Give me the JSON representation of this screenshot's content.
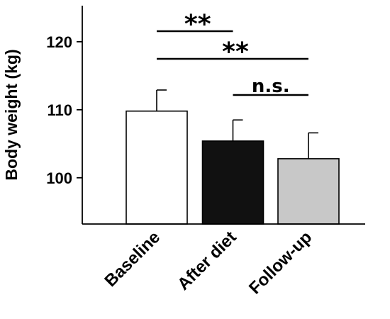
{
  "chart_data": {
    "type": "bar",
    "title": "",
    "xlabel": "",
    "ylabel": "Body weight (kg)",
    "categories": [
      "Baseline",
      "After diet",
      "Follow-up"
    ],
    "values": [
      109.8,
      105.4,
      102.8
    ],
    "errors": [
      3.1,
      3.1,
      3.8
    ],
    "bar_colors": [
      "#ffffff",
      "#111111",
      "#c8c8c8"
    ],
    "ylim": [
      93.2,
      125.3
    ],
    "yticks": [
      100,
      110,
      120
    ],
    "grid": false,
    "legend": "none",
    "significance": [
      {
        "from": "Baseline",
        "to": "After diet",
        "label": "**"
      },
      {
        "from": "Baseline",
        "to": "Follow-up",
        "label": "**"
      },
      {
        "from": "After diet",
        "to": "Follow-up",
        "label": "n.s."
      }
    ]
  }
}
